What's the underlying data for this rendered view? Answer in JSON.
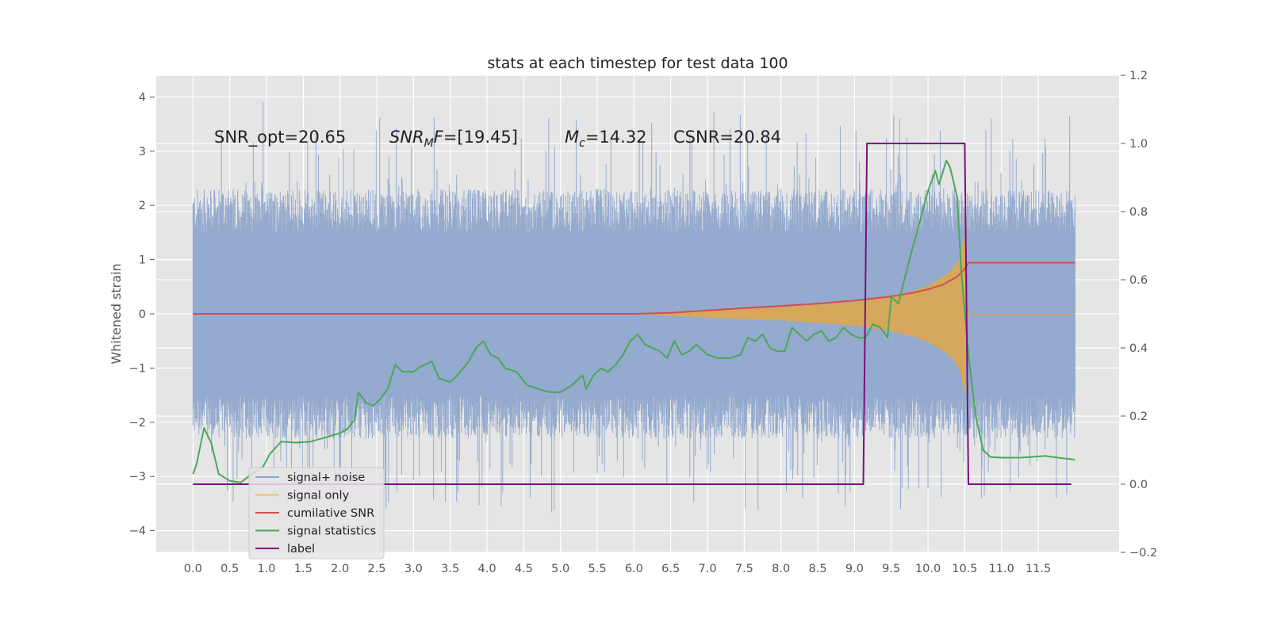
{
  "chart_data": {
    "type": "line",
    "title": "stats at each timestep for test data 100",
    "xlabel": "",
    "ylabel": "Whitened strain",
    "y2label": "",
    "xlim": [
      -0.5,
      12.6
    ],
    "ylim": [
      -4.4,
      4.4
    ],
    "y2lim": [
      -0.2,
      1.2
    ],
    "grid": true,
    "legend_position": "lower-left",
    "x_ticks": [
      "0.0",
      "0.5",
      "1.0",
      "1.5",
      "2.0",
      "2.5",
      "3.0",
      "3.5",
      "4.0",
      "4.5",
      "5.0",
      "5.5",
      "6.0",
      "6.5",
      "7.0",
      "7.5",
      "8.0",
      "8.5",
      "9.0",
      "9.5",
      "10.0",
      "10.5",
      "11.0",
      "11.5"
    ],
    "y_ticks": [
      "4",
      "3",
      "2",
      "1",
      "0",
      "−1",
      "−2",
      "−3",
      "−4"
    ],
    "y2_ticks": [
      "1.2",
      "1.0",
      "0.8",
      "0.6",
      "0.4",
      "0.2",
      "0.0",
      "−0.2"
    ],
    "annotations": {
      "snr_opt": "SNR_opt=20.65",
      "snr_mf_main": "SNR",
      "snr_mf_sub": "M",
      "snr_mf_tail": "F",
      "snr_mf_value": "=[19.45]",
      "mc_main": "M",
      "mc_sub": "c",
      "mc_value": "=14.32",
      "csnr": "CSNR=20.84"
    },
    "legend": [
      {
        "label": "signal+ noise",
        "color": "#8fa6cc"
      },
      {
        "label": "signal only",
        "color": "#f0c060"
      },
      {
        "label": "cumilative SNR",
        "color": "#d0504f"
      },
      {
        "label": "signal statistics",
        "color": "#4aa858"
      },
      {
        "label": "label",
        "color": "#7a0f80"
      }
    ],
    "series": [
      {
        "name": "signal+ noise",
        "axis": "left",
        "style": "noise-band",
        "color": "#8fa6cc",
        "x_start": 0.0,
        "x_end": 12.0,
        "upper_typical": 1.9,
        "lower_typical": -1.9,
        "spike_max": 4.1,
        "spike_min": -4.0
      },
      {
        "name": "signal only",
        "axis": "left",
        "style": "chirp-envelope",
        "color": "#e0a84a",
        "x": [
          0.0,
          6.0,
          7.0,
          8.0,
          8.5,
          9.0,
          9.5,
          9.8,
          10.0,
          10.2,
          10.3,
          10.4,
          10.45,
          10.5,
          10.55,
          12.0
        ],
        "amplitude": [
          0.0,
          0.0,
          0.07,
          0.12,
          0.17,
          0.22,
          0.32,
          0.42,
          0.52,
          0.68,
          0.78,
          0.95,
          1.15,
          1.5,
          0.0,
          0.0
        ]
      },
      {
        "name": "cumilative SNR",
        "axis": "right",
        "color": "#d0504f",
        "x": [
          0.0,
          6.0,
          6.5,
          7.0,
          7.5,
          8.0,
          8.5,
          9.0,
          9.5,
          9.8,
          10.0,
          10.2,
          10.4,
          10.5,
          10.55,
          12.0
        ],
        "values": [
          0.5,
          0.5,
          0.503,
          0.51,
          0.517,
          0.523,
          0.53,
          0.539,
          0.551,
          0.562,
          0.572,
          0.585,
          0.61,
          0.632,
          0.65,
          0.65
        ]
      },
      {
        "name": "signal statistics",
        "axis": "right",
        "color": "#4aa858",
        "x": [
          0.0,
          0.05,
          0.15,
          0.25,
          0.35,
          0.5,
          0.65,
          0.8,
          0.95,
          1.05,
          1.2,
          1.4,
          1.6,
          1.8,
          2.0,
          2.1,
          2.2,
          2.25,
          2.35,
          2.45,
          2.55,
          2.65,
          2.75,
          2.85,
          3.0,
          3.1,
          3.25,
          3.35,
          3.5,
          3.6,
          3.75,
          3.85,
          3.95,
          4.05,
          4.15,
          4.25,
          4.4,
          4.55,
          4.7,
          4.85,
          5.0,
          5.15,
          5.3,
          5.35,
          5.45,
          5.55,
          5.65,
          5.75,
          5.85,
          5.95,
          6.05,
          6.15,
          6.25,
          6.35,
          6.45,
          6.55,
          6.65,
          6.75,
          6.85,
          7.0,
          7.15,
          7.3,
          7.45,
          7.55,
          7.65,
          7.75,
          7.85,
          7.95,
          8.05,
          8.15,
          8.25,
          8.35,
          8.45,
          8.55,
          8.65,
          8.75,
          8.85,
          8.95,
          9.05,
          9.15,
          9.25,
          9.35,
          9.45,
          9.5,
          9.6,
          9.7,
          9.8,
          9.9,
          10.0,
          10.1,
          10.15,
          10.25,
          10.3,
          10.4,
          10.45,
          10.55,
          10.65,
          10.75,
          10.85,
          11.0,
          11.25,
          11.4,
          11.6,
          11.8,
          12.0
        ],
        "values": [
          0.03,
          0.06,
          0.165,
          0.12,
          0.03,
          0.01,
          0.005,
          0.03,
          0.05,
          0.09,
          0.125,
          0.122,
          0.125,
          0.137,
          0.15,
          0.162,
          0.19,
          0.27,
          0.24,
          0.23,
          0.25,
          0.28,
          0.35,
          0.33,
          0.33,
          0.345,
          0.36,
          0.31,
          0.3,
          0.32,
          0.36,
          0.4,
          0.42,
          0.38,
          0.37,
          0.34,
          0.33,
          0.29,
          0.28,
          0.27,
          0.27,
          0.29,
          0.32,
          0.28,
          0.32,
          0.34,
          0.33,
          0.35,
          0.38,
          0.42,
          0.44,
          0.41,
          0.4,
          0.39,
          0.37,
          0.42,
          0.38,
          0.39,
          0.41,
          0.38,
          0.37,
          0.37,
          0.38,
          0.43,
          0.42,
          0.44,
          0.4,
          0.39,
          0.39,
          0.46,
          0.44,
          0.42,
          0.44,
          0.45,
          0.42,
          0.43,
          0.46,
          0.44,
          0.43,
          0.43,
          0.47,
          0.46,
          0.43,
          0.55,
          0.53,
          0.62,
          0.7,
          0.78,
          0.86,
          0.92,
          0.88,
          0.95,
          0.93,
          0.84,
          0.63,
          0.38,
          0.2,
          0.1,
          0.08,
          0.078,
          0.078,
          0.08,
          0.083,
          0.077,
          0.072
        ]
      },
      {
        "name": "label",
        "axis": "right",
        "color": "#7a0f80",
        "x": [
          0.0,
          9.12,
          9.17,
          10.5,
          10.55,
          11.95
        ],
        "values": [
          0.0,
          0.0,
          1.0,
          1.0,
          0.0,
          0.0
        ]
      }
    ]
  }
}
